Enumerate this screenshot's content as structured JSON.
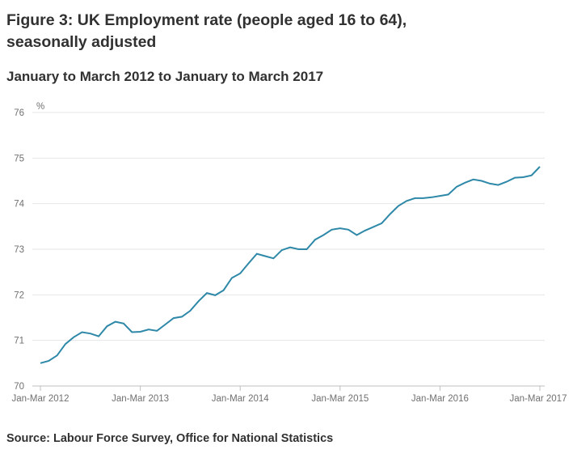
{
  "header": {
    "title": "Figure 3: UK Employment rate (people aged 16 to 64), seasonally adjusted",
    "subtitle": "January to March 2012 to January to March 2017"
  },
  "footer": {
    "source": "Source: Labour Force Survey, Office for National Statistics"
  },
  "colors": {
    "line": "#2e88a8",
    "grid": "#e6e6e6",
    "axis": "#bfbfbf",
    "text": "#323132"
  },
  "chart_data": {
    "type": "line",
    "ylabel": "%",
    "ylim": [
      70,
      76
    ],
    "yticks": [
      70,
      71,
      72,
      73,
      74,
      75,
      76
    ],
    "xtick_labels": [
      "Jan-Mar 2012",
      "Jan-Mar 2013",
      "Jan-Mar 2014",
      "Jan-Mar 2015",
      "Jan-Mar 2016",
      "Jan-Mar 2017"
    ],
    "grid": true,
    "series": [
      {
        "values": [
          70.5,
          70.55,
          70.67,
          70.92,
          71.07,
          71.18,
          71.15,
          71.09,
          71.31,
          71.41,
          71.37,
          71.18,
          71.19,
          71.24,
          71.21,
          71.35,
          71.49,
          71.52,
          71.65,
          71.86,
          72.04,
          71.99,
          72.1,
          72.37,
          72.47,
          72.69,
          72.9,
          72.85,
          72.8,
          72.98,
          73.04,
          73.0,
          73.0,
          73.21,
          73.31,
          73.43,
          73.46,
          73.43,
          73.31,
          73.41,
          73.49,
          73.57,
          73.77,
          73.95,
          74.06,
          74.12,
          74.12,
          74.14,
          74.17,
          74.2,
          74.37,
          74.46,
          74.53,
          74.5,
          74.44,
          74.41,
          74.48,
          74.57,
          74.58,
          74.62,
          74.81
        ]
      }
    ]
  }
}
